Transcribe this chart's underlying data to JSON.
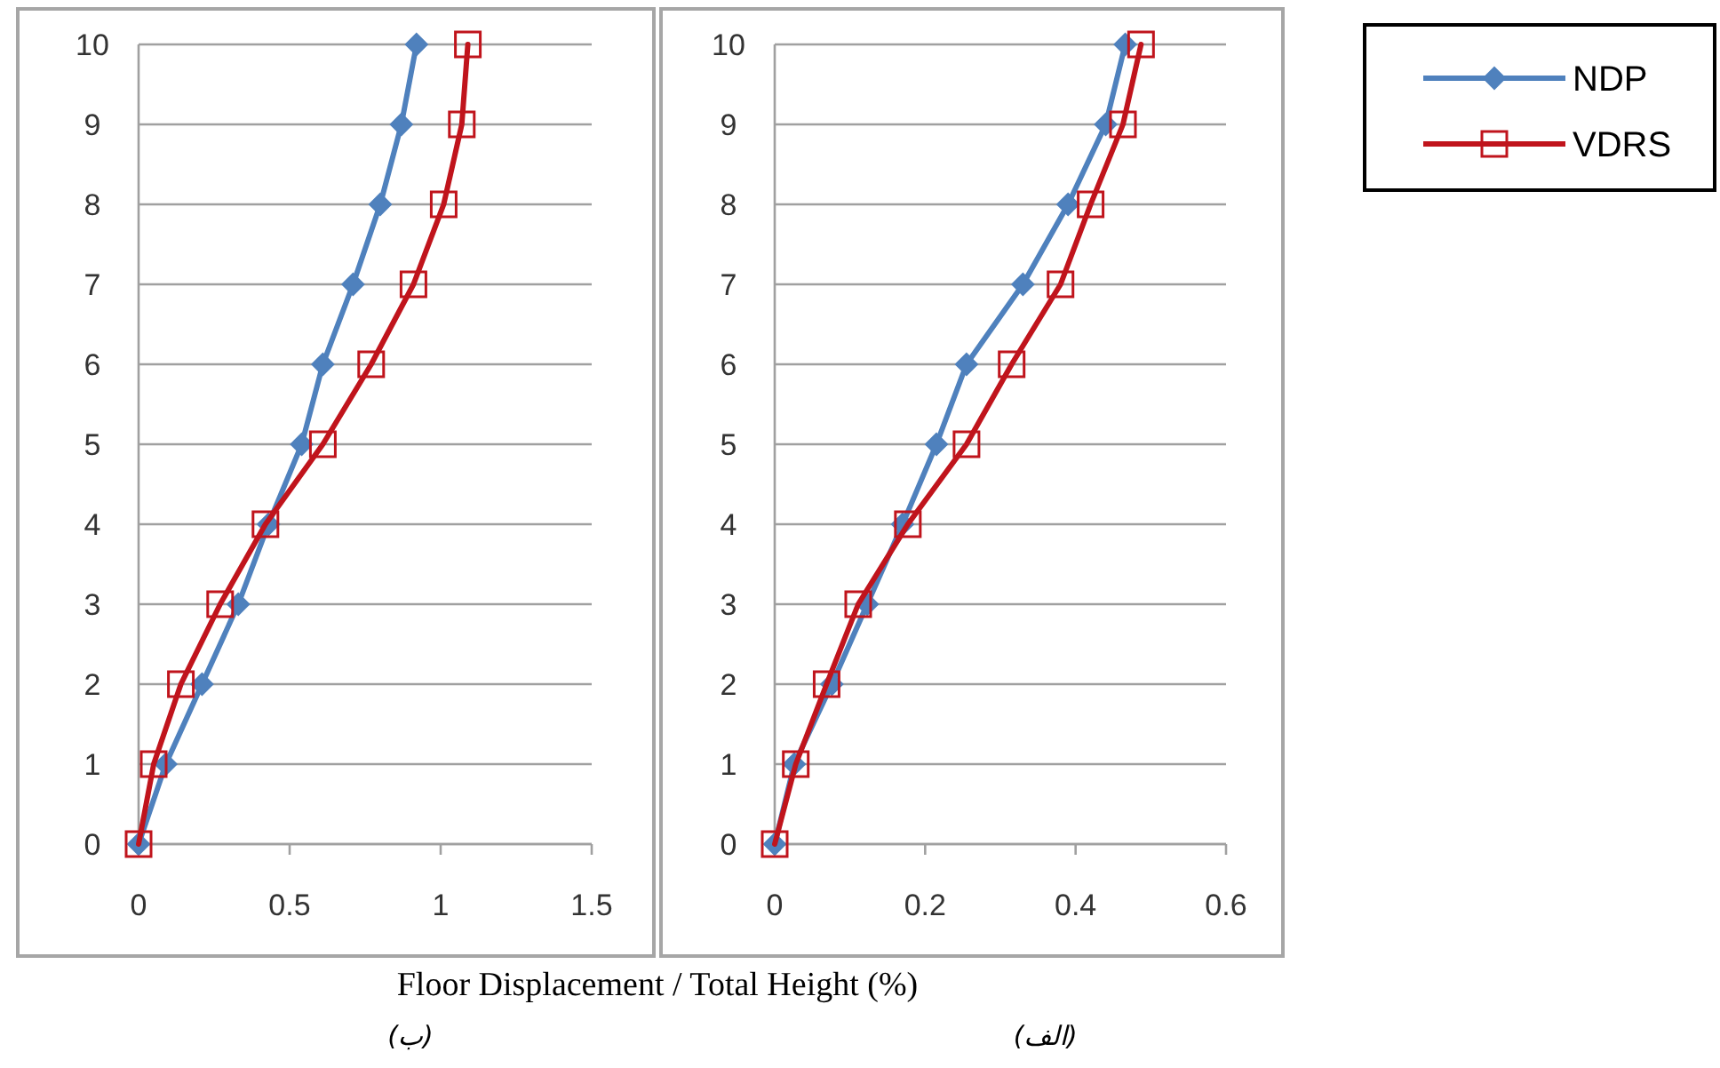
{
  "chart_data": [
    {
      "type": "line",
      "xlabel": "Floor Displacement / Total Height (%)",
      "annotations": [
        "(ب)"
      ],
      "xlim": [
        0,
        1.5
      ],
      "xticks": [
        0,
        0.5,
        1,
        1.5
      ],
      "ylim": [
        0,
        10
      ],
      "yticks": [
        0,
        1,
        2,
        3,
        4,
        5,
        6,
        7,
        8,
        9,
        10
      ],
      "grid": "y",
      "series": [
        {
          "color": "#4f81bd",
          "marker": "diamond",
          "x": [
            0,
            0.09,
            0.21,
            0.33,
            0.43,
            0.54,
            0.61,
            0.71,
            0.8,
            0.87,
            0.92
          ],
          "values": [
            0,
            1,
            2,
            3,
            4,
            5,
            6,
            7,
            8,
            9,
            10
          ]
        },
        {
          "color": "#c0141c",
          "marker": "square",
          "x": [
            0,
            0.05,
            0.14,
            0.27,
            0.42,
            0.61,
            0.77,
            0.91,
            1.01,
            1.07,
            1.09
          ],
          "values": [
            0,
            1,
            2,
            3,
            4,
            5,
            6,
            7,
            8,
            9,
            10
          ]
        }
      ]
    },
    {
      "type": "line",
      "annotations": [
        "(الف)"
      ],
      "xlim": [
        0,
        0.6
      ],
      "xticks": [
        0,
        0.2,
        0.4,
        0.6
      ],
      "ylim": [
        0,
        10
      ],
      "yticks": [
        0,
        1,
        2,
        3,
        4,
        5,
        6,
        7,
        8,
        9,
        10
      ],
      "grid": "y",
      "legend": "right",
      "series": [
        {
          "name": "NDP",
          "color": "#4f81bd",
          "marker": "diamond",
          "x": [
            0,
            0.026,
            0.076,
            0.123,
            0.17,
            0.215,
            0.255,
            0.33,
            0.39,
            0.44,
            0.466
          ],
          "values": [
            0,
            1,
            2,
            3,
            4,
            5,
            6,
            7,
            8,
            9,
            10
          ]
        },
        {
          "name": "VDRS",
          "color": "#c0141c",
          "marker": "square",
          "x": [
            0,
            0.028,
            0.069,
            0.111,
            0.177,
            0.255,
            0.315,
            0.38,
            0.42,
            0.463,
            0.487
          ],
          "values": [
            0,
            1,
            2,
            3,
            4,
            5,
            6,
            7,
            8,
            9,
            10
          ]
        }
      ]
    }
  ]
}
